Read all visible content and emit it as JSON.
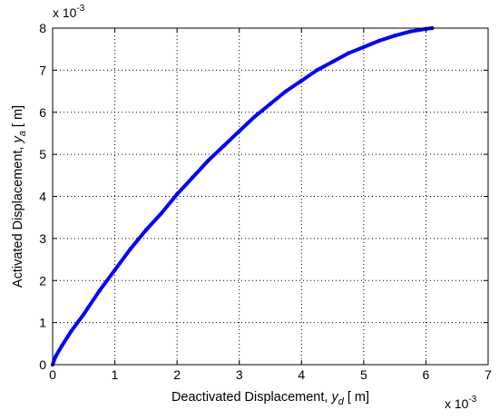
{
  "chart_data": {
    "type": "line",
    "x_unit_multiplier": "x 10",
    "x_unit_exponent": "-3",
    "y_unit_multiplier": "x 10",
    "y_unit_exponent": "-3",
    "xlabel": {
      "text": "Deactivated Displacement, ",
      "var": "y",
      "sub": "d",
      "unit": " [ m]"
    },
    "ylabel": {
      "text": "Activated Displacement, ",
      "var": "y",
      "sub": "a",
      "unit": " [ m]"
    },
    "xlim": [
      0,
      7
    ],
    "ylim": [
      0,
      8
    ],
    "xticks": [
      "0",
      "1",
      "2",
      "3",
      "4",
      "5",
      "6",
      "7"
    ],
    "yticks": [
      "0",
      "1",
      "2",
      "3",
      "4",
      "5",
      "6",
      "7",
      "8"
    ],
    "grid": true,
    "series": [
      {
        "color": "#0000ff",
        "x": [
          0.0,
          0.05,
          0.15,
          0.3,
          0.5,
          0.75,
          1.0,
          1.25,
          1.5,
          1.75,
          2.0,
          2.25,
          2.5,
          2.75,
          3.0,
          3.25,
          3.5,
          3.75,
          4.0,
          4.25,
          4.5,
          4.75,
          5.0,
          5.25,
          5.5,
          5.75,
          6.0,
          6.1
        ],
        "y": [
          0.0,
          0.2,
          0.45,
          0.8,
          1.2,
          1.75,
          2.25,
          2.75,
          3.2,
          3.6,
          4.05,
          4.45,
          4.85,
          5.2,
          5.55,
          5.9,
          6.2,
          6.5,
          6.75,
          7.0,
          7.2,
          7.4,
          7.55,
          7.7,
          7.82,
          7.92,
          7.98,
          8.0
        ]
      }
    ]
  }
}
